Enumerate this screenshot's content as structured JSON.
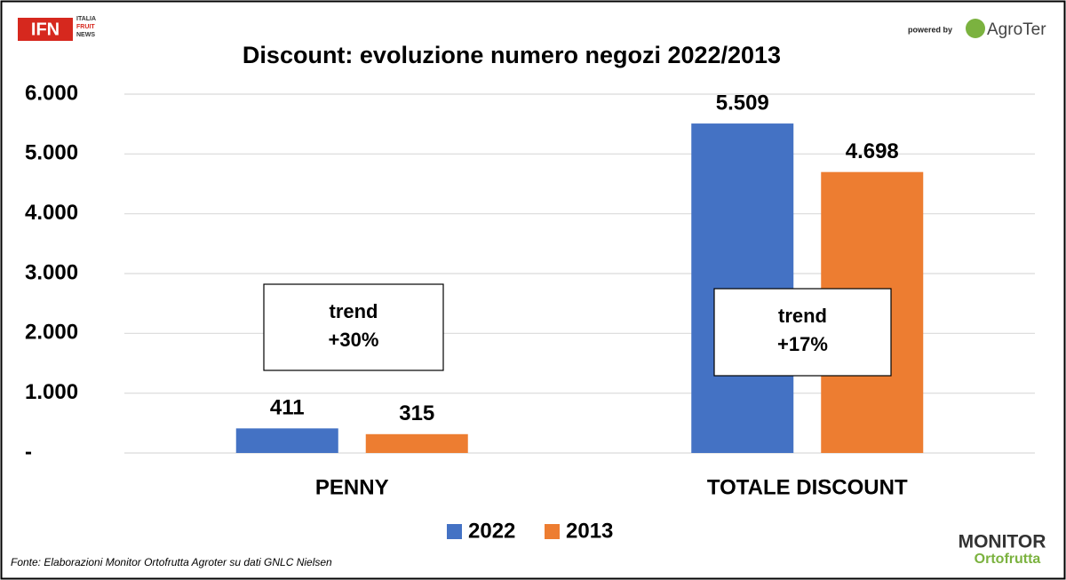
{
  "chart_data": {
    "type": "bar",
    "title": "Discount: evoluzione numero negozi 2022/2013",
    "categories": [
      "PENNY",
      "TOTALE DISCOUNT"
    ],
    "series": [
      {
        "name": "2022",
        "color": "#4472c4",
        "values": [
          411,
          5509
        ],
        "value_labels": [
          "411",
          "5.509"
        ]
      },
      {
        "name": "2013",
        "color": "#ed7d31",
        "values": [
          315,
          4698
        ],
        "value_labels": [
          "315",
          "4.698"
        ]
      }
    ],
    "ylim": [
      0,
      6000
    ],
    "yticks": [
      {
        "value": 0,
        "label": "-"
      },
      {
        "value": 1000,
        "label": "1.000"
      },
      {
        "value": 2000,
        "label": "2.000"
      },
      {
        "value": 3000,
        "label": "3.000"
      },
      {
        "value": 4000,
        "label": "4.000"
      },
      {
        "value": 5000,
        "label": "5.000"
      },
      {
        "value": 6000,
        "label": "6.000"
      }
    ],
    "grid": true,
    "legend": "bottom",
    "annotations": [
      [
        "trend",
        "+30%"
      ],
      [
        "trend",
        "+17%"
      ]
    ],
    "source": "Fonte: Elaborazioni Monitor Ortofrutta Agroter su dati GNLC Nielsen"
  },
  "branding": {
    "ifn": "IFN",
    "ifn_sub": [
      "ITALIA",
      "FRUIT",
      "NEWS"
    ],
    "powered_by": "powered by",
    "agroter": "AgroTer",
    "monitor": "MONITOR",
    "ortofrutta": "Ortofrutta"
  }
}
